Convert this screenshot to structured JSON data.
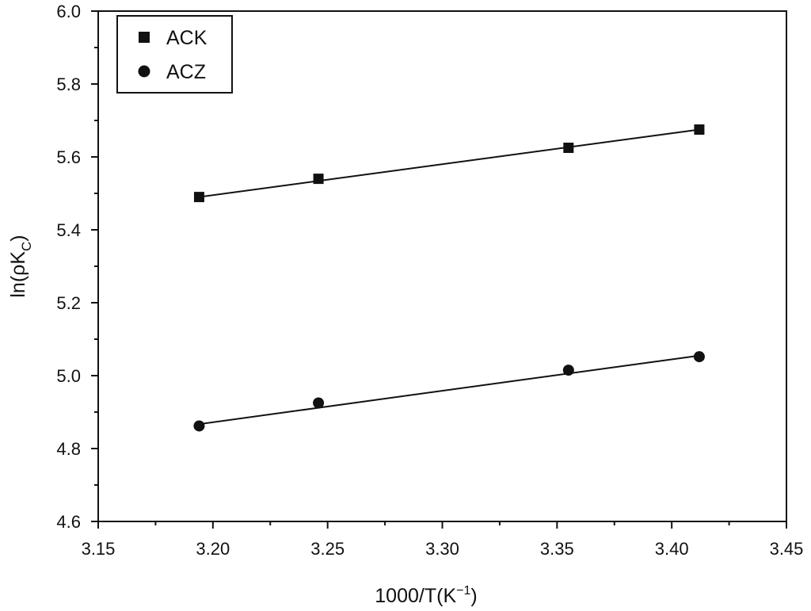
{
  "chart_data": {
    "type": "scatter",
    "title": "",
    "xlabel": {
      "main": "1000/T(K",
      "sup": "−1",
      "close": ")"
    },
    "ylabel": {
      "main": "ln(ρK",
      "sub": "C",
      "close": ")"
    },
    "xlim": [
      3.15,
      3.45
    ],
    "ylim": [
      4.6,
      6.0
    ],
    "xticks": [
      "3.15",
      "3.20",
      "3.25",
      "3.30",
      "3.35",
      "3.40",
      "3.45"
    ],
    "yticks": [
      "4.6",
      "4.8",
      "5.0",
      "5.2",
      "5.4",
      "5.6",
      "5.8",
      "6.0"
    ],
    "grid": false,
    "legend": "top-left",
    "series": [
      {
        "name": "ACK",
        "marker": "square",
        "x": [
          3.194,
          3.246,
          3.355,
          3.412
        ],
        "y": [
          5.49,
          5.54,
          5.625,
          5.675
        ],
        "fit": [
          [
            3.194,
            5.49
          ],
          [
            3.412,
            5.675
          ]
        ]
      },
      {
        "name": "ACZ",
        "marker": "circle",
        "x": [
          3.194,
          3.246,
          3.355,
          3.412
        ],
        "y": [
          4.862,
          4.925,
          5.015,
          5.052
        ],
        "fit": [
          [
            3.194,
            4.867
          ],
          [
            3.412,
            5.055
          ]
        ]
      }
    ]
  }
}
